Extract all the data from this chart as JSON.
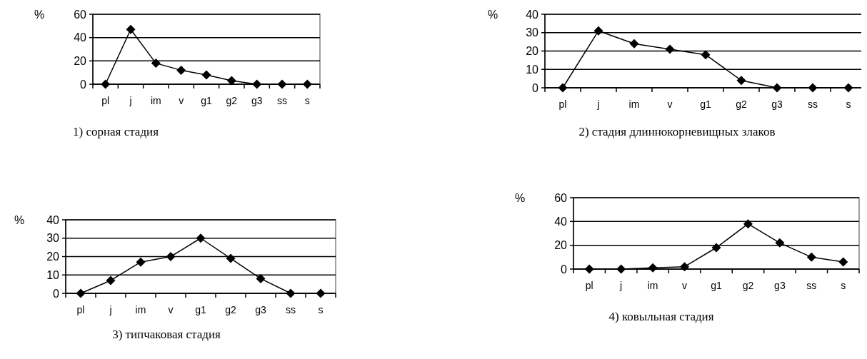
{
  "chart_data": [
    {
      "type": "line",
      "title": "1) сорная стадия",
      "ylabel": "%",
      "categories": [
        "pl",
        "j",
        "im",
        "v",
        "g1",
        "g2",
        "g3",
        "ss",
        "s"
      ],
      "series": [
        {
          "color": "#000000",
          "values": [
            0,
            47,
            18,
            12,
            8,
            3,
            0,
            0,
            0
          ]
        }
      ],
      "ylim": [
        0,
        60
      ],
      "yticks": [
        0,
        20,
        40,
        60
      ],
      "grid": "y",
      "marker": "diamond",
      "line_style": "solid"
    },
    {
      "type": "line",
      "title": "2) стадия длиннокорневищных злаков",
      "ylabel": "%",
      "categories": [
        "pl",
        "j",
        "im",
        "v",
        "g1",
        "g2",
        "g3",
        "ss",
        "s"
      ],
      "series": [
        {
          "color": "#000000",
          "values": [
            0,
            31,
            24,
            21,
            18,
            4,
            0,
            0,
            0
          ]
        }
      ],
      "ylim": [
        0,
        40
      ],
      "yticks": [
        0,
        10,
        20,
        30,
        40
      ],
      "grid": "y",
      "marker": "diamond",
      "line_style": "solid"
    },
    {
      "type": "line",
      "title": "3) типчаковая стадия",
      "ylabel": "%",
      "categories": [
        "pl",
        "j",
        "im",
        "v",
        "g1",
        "g2",
        "g3",
        "ss",
        "s"
      ],
      "series": [
        {
          "color": "#000000",
          "values": [
            0,
            7,
            17,
            20,
            30,
            19,
            8,
            0,
            0
          ]
        }
      ],
      "ylim": [
        0,
        40
      ],
      "yticks": [
        0,
        10,
        20,
        30,
        40
      ],
      "grid": "y",
      "marker": "diamond",
      "line_style": "solid"
    },
    {
      "type": "line",
      "title": "4) ковыльная стадия",
      "ylabel": "%",
      "categories": [
        "pl",
        "j",
        "im",
        "v",
        "g1",
        "g2",
        "g3",
        "ss",
        "s"
      ],
      "series": [
        {
          "color": "#000000",
          "values": [
            0,
            0,
            1,
            2,
            18,
            38,
            22,
            10,
            6
          ]
        }
      ],
      "ylim": [
        0,
        60
      ],
      "yticks": [
        0,
        20,
        40,
        60
      ],
      "grid": "y",
      "marker": "diamond",
      "line_style": "solid"
    }
  ]
}
